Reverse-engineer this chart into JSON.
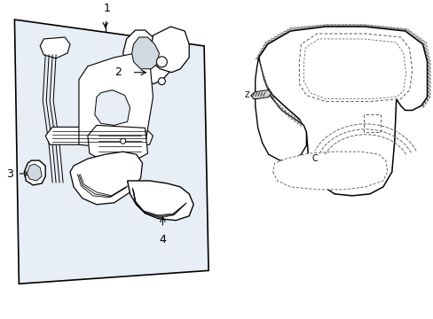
{
  "background_color": "#ffffff",
  "panel_fill": "#e8eef5",
  "line_color": "#000000",
  "dashed_line_color": "#666666",
  "label_1": "1",
  "label_2": "2",
  "label_3": "3",
  "label_4": "4",
  "label_c": "C",
  "label_z": "Z",
  "figsize": [
    4.89,
    3.6
  ],
  "dpi": 100
}
